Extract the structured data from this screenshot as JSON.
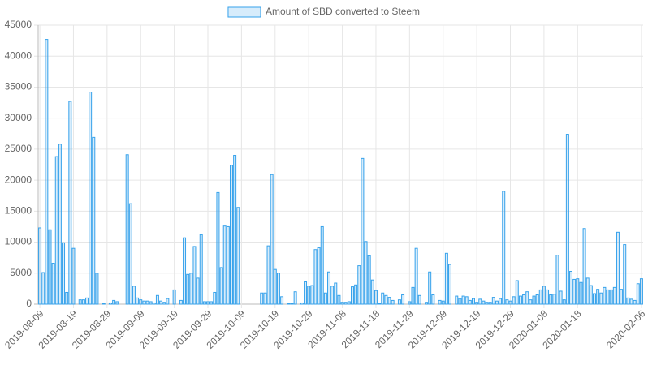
{
  "chart_data": {
    "type": "bar",
    "categories": [
      "2019-08-09",
      null,
      null,
      null,
      null,
      null,
      null,
      null,
      null,
      null,
      "2019-08-19",
      null,
      null,
      null,
      null,
      null,
      null,
      null,
      null,
      null,
      "2019-08-29",
      null,
      null,
      null,
      null,
      null,
      null,
      null,
      null,
      null,
      "2019-09-09",
      null,
      null,
      null,
      null,
      null,
      null,
      null,
      null,
      null,
      "2019-09-19",
      null,
      null,
      null,
      null,
      null,
      null,
      null,
      null,
      null,
      "2019-09-29",
      null,
      null,
      null,
      null,
      null,
      null,
      null,
      null,
      null,
      "2019-10-09",
      null,
      null,
      null,
      null,
      null,
      null,
      null,
      null,
      null,
      "2019-10-19",
      null,
      null,
      null,
      null,
      null,
      null,
      null,
      null,
      null,
      "2019-10-29",
      null,
      null,
      null,
      null,
      null,
      null,
      null,
      null,
      null,
      "2019-11-08",
      null,
      null,
      null,
      null,
      null,
      null,
      null,
      null,
      null,
      "2019-11-18",
      null,
      null,
      null,
      null,
      null,
      null,
      null,
      null,
      null,
      "2019-11-29",
      null,
      null,
      null,
      null,
      null,
      null,
      null,
      null,
      null,
      "2019-12-09",
      null,
      null,
      null,
      null,
      null,
      null,
      null,
      null,
      null,
      "2019-12-19",
      null,
      null,
      null,
      null,
      null,
      null,
      null,
      null,
      null,
      "2019-12-29",
      null,
      null,
      null,
      null,
      null,
      null,
      null,
      null,
      null,
      "2020-01-08",
      null,
      null,
      null,
      null,
      null,
      null,
      null,
      null,
      null,
      "2020-01-18",
      null,
      null,
      null,
      null,
      null,
      null,
      null,
      null,
      null,
      null,
      null,
      null,
      null,
      null,
      null,
      null,
      null,
      null,
      "2020-02-06"
    ],
    "series": [
      {
        "name": "Amount of SBD converted to Steem",
        "color": "#36a2eb",
        "values": [
          12300,
          5100,
          42700,
          12000,
          6600,
          23800,
          25800,
          9900,
          1900,
          32700,
          9000,
          0,
          700,
          700,
          1000,
          34200,
          26900,
          5000,
          0,
          100,
          0,
          200,
          600,
          400,
          0,
          0,
          24100,
          16200,
          2900,
          1000,
          700,
          500,
          500,
          400,
          200,
          1400,
          500,
          300,
          900,
          0,
          2300,
          0,
          600,
          10700,
          4800,
          5000,
          9300,
          4200,
          11200,
          400,
          400,
          400,
          1900,
          18000,
          5900,
          12600,
          12500,
          22400,
          24000,
          15600,
          0,
          0,
          0,
          0,
          0,
          0,
          1800,
          1800,
          9400,
          20900,
          5600,
          5000,
          1200,
          0,
          100,
          100,
          2000,
          0,
          200,
          3600,
          2900,
          3000,
          8800,
          9100,
          12500,
          1800,
          5200,
          2900,
          3400,
          1400,
          300,
          300,
          400,
          2800,
          3100,
          6200,
          23500,
          10100,
          7800,
          3900,
          2200,
          100,
          1800,
          1400,
          1100,
          600,
          0,
          700,
          1500,
          0,
          400,
          2700,
          9000,
          1400,
          0,
          300,
          5200,
          1500,
          0,
          600,
          500,
          8200,
          6400,
          0,
          1300,
          900,
          1300,
          1200,
          600,
          900,
          300,
          800,
          500,
          300,
          300,
          1100,
          500,
          900,
          18200,
          700,
          500,
          1200,
          3800,
          1300,
          1500,
          2000,
          700,
          1300,
          1500,
          2300,
          2900,
          2300,
          1500,
          1600,
          7900,
          2100,
          700,
          27400,
          5300,
          4000,
          4100,
          3500,
          12200,
          4200,
          3000,
          1700,
          2400,
          1800,
          2700,
          2300,
          2300,
          2700,
          11600,
          2400,
          9600,
          1000,
          800,
          600,
          3300,
          4100
        ]
      }
    ],
    "ylim": [
      0,
      45000
    ],
    "yticks": [
      0,
      5000,
      10000,
      15000,
      20000,
      25000,
      30000,
      35000,
      40000,
      45000
    ],
    "grid": true,
    "legend": "top"
  }
}
